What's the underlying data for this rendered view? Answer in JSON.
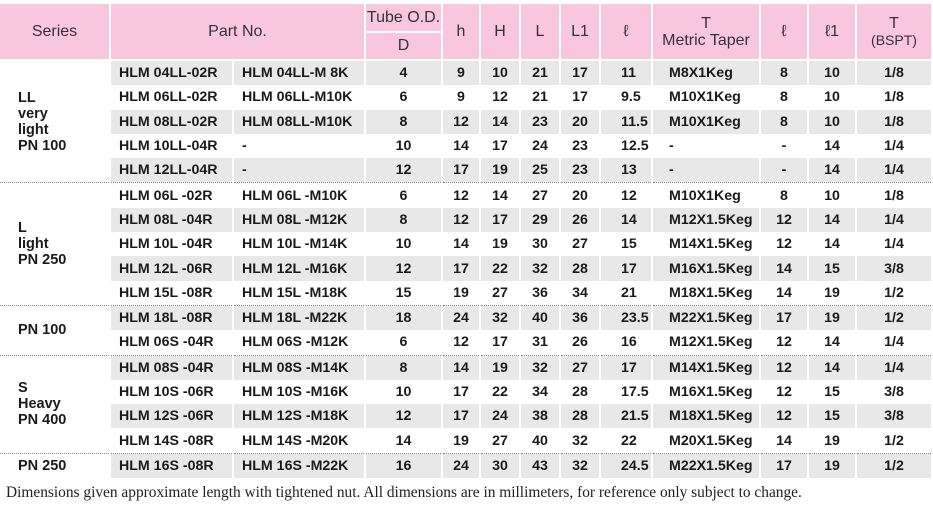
{
  "headers": {
    "series": "Series",
    "part_no": "Part No.",
    "tube_od": "Tube O.D.",
    "tube_od_sub": "D",
    "h": "h",
    "H": "H",
    "L": "L",
    "L1": "L1",
    "l_script": "ℓ",
    "t_main": "T",
    "t_sub": "Metric Taper",
    "l2_script": "ℓ",
    "l1_script": "ℓ1",
    "tb_main": "T",
    "tb_sub": "(BSPT)"
  },
  "groups": [
    {
      "series": "LL\nvery\nlight\nPN 100",
      "rows": [
        [
          "HLM 04LL-02R",
          "HLM 04LL-M 8K",
          "4",
          "9",
          "10",
          "21",
          "17",
          "11",
          "M8X1Keg",
          "8",
          "10",
          "1/8"
        ],
        [
          "HLM 06LL-02R",
          "HLM 06LL-M10K",
          "6",
          "9",
          "12",
          "21",
          "17",
          "9.5",
          "M10X1Keg",
          "8",
          "10",
          "1/8"
        ],
        [
          "HLM 08LL-02R",
          "HLM 08LL-M10K",
          "8",
          "12",
          "14",
          "23",
          "20",
          "11.5",
          "M10X1Keg",
          "8",
          "10",
          "1/8"
        ],
        [
          "HLM 10LL-04R",
          "-",
          "10",
          "14",
          "17",
          "24",
          "23",
          "12.5",
          "-",
          "-",
          "14",
          "1/4"
        ],
        [
          "HLM 12LL-04R",
          "-",
          "12",
          "17",
          "19",
          "25",
          "23",
          "13",
          "-",
          "-",
          "14",
          "1/4"
        ]
      ]
    },
    {
      "series": "L\nlight\nPN 250",
      "rows": [
        [
          "HLM 06L -02R",
          "HLM 06L -M10K",
          "6",
          "12",
          "14",
          "27",
          "20",
          "12",
          "M10X1Keg",
          "8",
          "10",
          "1/8"
        ],
        [
          "HLM 08L -04R",
          "HLM 08L -M12K",
          "8",
          "12",
          "17",
          "29",
          "26",
          "14",
          "M12X1.5Keg",
          "12",
          "14",
          "1/4"
        ],
        [
          "HLM 10L -04R",
          "HLM 10L -M14K",
          "10",
          "14",
          "19",
          "30",
          "27",
          "15",
          "M14X1.5Keg",
          "12",
          "14",
          "1/4"
        ],
        [
          "HLM 12L -06R",
          "HLM 12L -M16K",
          "12",
          "17",
          "22",
          "32",
          "28",
          "17",
          "M16X1.5Keg",
          "14",
          "15",
          "3/8"
        ],
        [
          "HLM 15L -08R",
          "HLM 15L -M18K",
          "15",
          "19",
          "27",
          "36",
          "34",
          "21",
          "M18X1.5Keg",
          "14",
          "19",
          "1/2"
        ]
      ]
    },
    {
      "series": "PN 100",
      "rows": [
        [
          "HLM 18L -08R",
          "HLM 18L -M22K",
          "18",
          "24",
          "32",
          "40",
          "36",
          "23.5",
          "M22X1.5Keg",
          "17",
          "19",
          "1/2"
        ],
        [
          "HLM 06S -04R",
          "HLM 06S -M12K",
          "6",
          "12",
          "17",
          "31",
          "26",
          "16",
          "M12X1.5Keg",
          "12",
          "14",
          "1/4"
        ]
      ]
    },
    {
      "series": "S\nHeavy\nPN 400",
      "rows": [
        [
          "HLM 08S -04R",
          "HLM 08S -M14K",
          "8",
          "14",
          "19",
          "32",
          "27",
          "17",
          "M14X1.5Keg",
          "12",
          "14",
          "1/4"
        ],
        [
          "HLM 10S -06R",
          "HLM 10S -M16K",
          "10",
          "17",
          "22",
          "34",
          "28",
          "17.5",
          "M16X1.5Keg",
          "12",
          "15",
          "3/8"
        ],
        [
          "HLM 12S -06R",
          "HLM 12S -M18K",
          "12",
          "17",
          "24",
          "38",
          "28",
          "21.5",
          "M18X1.5Keg",
          "12",
          "15",
          "3/8"
        ],
        [
          "HLM 14S -08R",
          "HLM 14S -M20K",
          "14",
          "19",
          "27",
          "40",
          "32",
          "22",
          "M20X1.5Keg",
          "14",
          "19",
          "1/2"
        ]
      ]
    },
    {
      "series": "PN 250",
      "rows": [
        [
          "HLM 16S -08R",
          "HLM 16S -M22K",
          "16",
          "24",
          "30",
          "43",
          "32",
          "24.5",
          "M22X1.5Keg",
          "17",
          "19",
          "1/2"
        ]
      ]
    }
  ],
  "footnote": "Dimensions given approximate length with tightened nut. All dimensions are in millimeters, for reference only subject to change."
}
